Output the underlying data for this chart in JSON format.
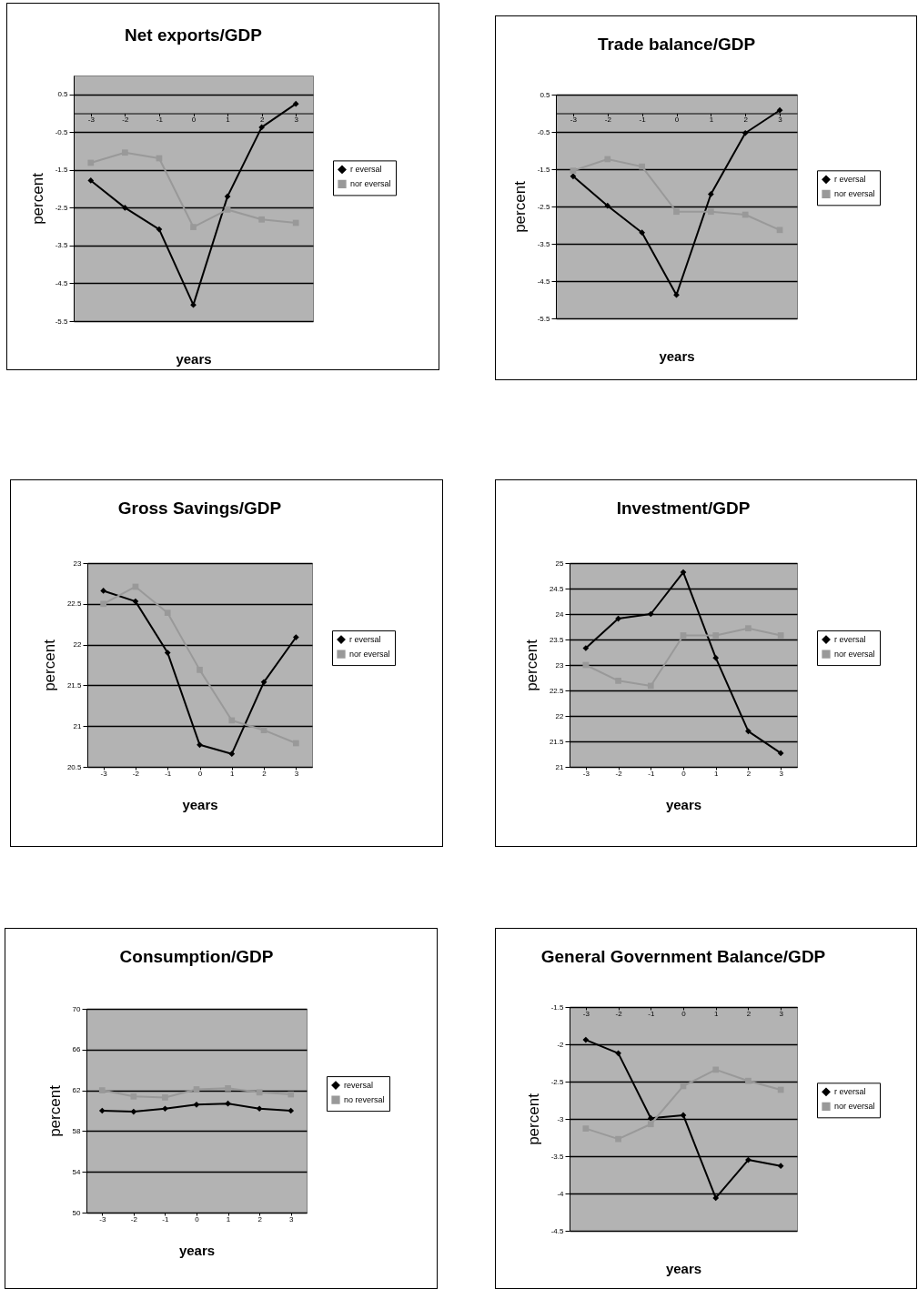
{
  "chart_data": [
    {
      "type": "line",
      "title": "Net exports/GDP",
      "xlabel": "years",
      "ylabel": "percent",
      "categories": [
        "-3",
        "-2",
        "-1",
        "0",
        "1",
        "2",
        "3"
      ],
      "ylim": [
        -5.5,
        1
      ],
      "yticks": [
        0.5,
        -0.5,
        -1.5,
        -2.5,
        -3.5,
        -4.5,
        -5.5
      ],
      "grid": "y",
      "legend": "right",
      "series": [
        {
          "name": "r eversal",
          "color": "#000000",
          "marker": "diamond",
          "values": [
            -1.78,
            -2.5,
            -3.07,
            -5.07,
            -2.2,
            -0.37,
            0.25
          ]
        },
        {
          "name": "nor eversal",
          "color": "#999999",
          "marker": "square",
          "values": [
            -1.31,
            -1.04,
            -1.19,
            -3.01,
            -2.55,
            -2.81,
            -2.9
          ]
        }
      ]
    },
    {
      "type": "line",
      "title": "Trade balance/GDP",
      "xlabel": "years",
      "ylabel": "percent",
      "categories": [
        "-3",
        "-2",
        "-1",
        "0",
        "1",
        "2",
        "3"
      ],
      "ylim": [
        -5.5,
        0.5
      ],
      "yticks": [
        0.5,
        -0.5,
        -1.5,
        -2.5,
        -3.5,
        -4.5,
        -5.5
      ],
      "grid": "y",
      "legend": "right",
      "series": [
        {
          "name": "r eversal",
          "color": "#000000",
          "marker": "diamond",
          "values": [
            -1.69,
            -2.48,
            -3.2,
            -4.87,
            -2.17,
            -0.53,
            0.08
          ]
        },
        {
          "name": "nor eversal",
          "color": "#999999",
          "marker": "square",
          "values": [
            -1.54,
            -1.23,
            -1.43,
            -2.64,
            -2.64,
            -2.72,
            -3.13
          ]
        }
      ]
    },
    {
      "type": "line",
      "title": "Gross Savings/GDP",
      "xlabel": "years",
      "ylabel": "percent",
      "categories": [
        "-3",
        "-2",
        "-1",
        "0",
        "1",
        "2",
        "3"
      ],
      "ylim": [
        20.5,
        23
      ],
      "yticks": [
        20.5,
        21,
        21.5,
        22,
        22.5,
        23
      ],
      "grid": "y",
      "legend": "right",
      "series": [
        {
          "name": "r eversal",
          "color": "#000000",
          "marker": "diamond",
          "values": [
            22.66,
            22.53,
            21.9,
            20.77,
            20.66,
            21.54,
            22.09
          ]
        },
        {
          "name": "nor eversal",
          "color": "#999999",
          "marker": "square",
          "values": [
            22.5,
            22.71,
            22.39,
            21.69,
            21.07,
            20.95,
            20.79
          ]
        }
      ]
    },
    {
      "type": "line",
      "title": "Investment/GDP",
      "xlabel": "years",
      "ylabel": "percent",
      "categories": [
        "-3",
        "-2",
        "-1",
        "0",
        "1",
        "2",
        "3"
      ],
      "ylim": [
        21,
        25
      ],
      "yticks": [
        21,
        21.5,
        22,
        22.5,
        23,
        23.5,
        24,
        24.5,
        25
      ],
      "grid": "y",
      "legend": "right",
      "series": [
        {
          "name": "r eversal",
          "color": "#000000",
          "marker": "diamond",
          "values": [
            23.33,
            23.91,
            24.0,
            24.82,
            23.14,
            21.7,
            21.27
          ]
        },
        {
          "name": "nor eversal",
          "color": "#999999",
          "marker": "square",
          "values": [
            23.0,
            22.69,
            22.59,
            23.58,
            23.58,
            23.72,
            23.58
          ]
        }
      ]
    },
    {
      "type": "line",
      "title": "Consumption/GDP",
      "xlabel": "years",
      "ylabel": "percent",
      "categories": [
        "-3",
        "-2",
        "-1",
        "0",
        "1",
        "2",
        "3"
      ],
      "ylim": [
        50,
        70
      ],
      "yticks": [
        50,
        54,
        58,
        62,
        66,
        70
      ],
      "grid": "y",
      "legend": "right",
      "series": [
        {
          "name": "reversal",
          "color": "#000000",
          "marker": "diamond",
          "values": [
            60.0,
            59.9,
            60.2,
            60.6,
            60.7,
            60.2,
            60.0
          ]
        },
        {
          "name": "no reversal",
          "color": "#999999",
          "marker": "square",
          "values": [
            62.0,
            61.4,
            61.3,
            62.1,
            62.2,
            61.8,
            61.6
          ]
        }
      ]
    },
    {
      "type": "line",
      "title": "General Government Balance/GDP",
      "xlabel": "years",
      "ylabel": "percent",
      "categories": [
        "-3",
        "-2",
        "-1",
        "0",
        "1",
        "2",
        "3"
      ],
      "ylim": [
        -4.5,
        -1.5
      ],
      "yticks": [
        -1.5,
        -2,
        -2.5,
        -3,
        -3.5,
        -4,
        -4.5
      ],
      "grid": "y",
      "legend": "right",
      "series": [
        {
          "name": "r eversal",
          "color": "#000000",
          "marker": "diamond",
          "values": [
            -1.94,
            -2.12,
            -2.99,
            -2.95,
            -4.06,
            -3.55,
            -3.63
          ]
        },
        {
          "name": "nor eversal",
          "color": "#999999",
          "marker": "square",
          "values": [
            -3.13,
            -3.27,
            -3.07,
            -2.56,
            -2.34,
            -2.49,
            -2.61
          ]
        }
      ]
    }
  ]
}
